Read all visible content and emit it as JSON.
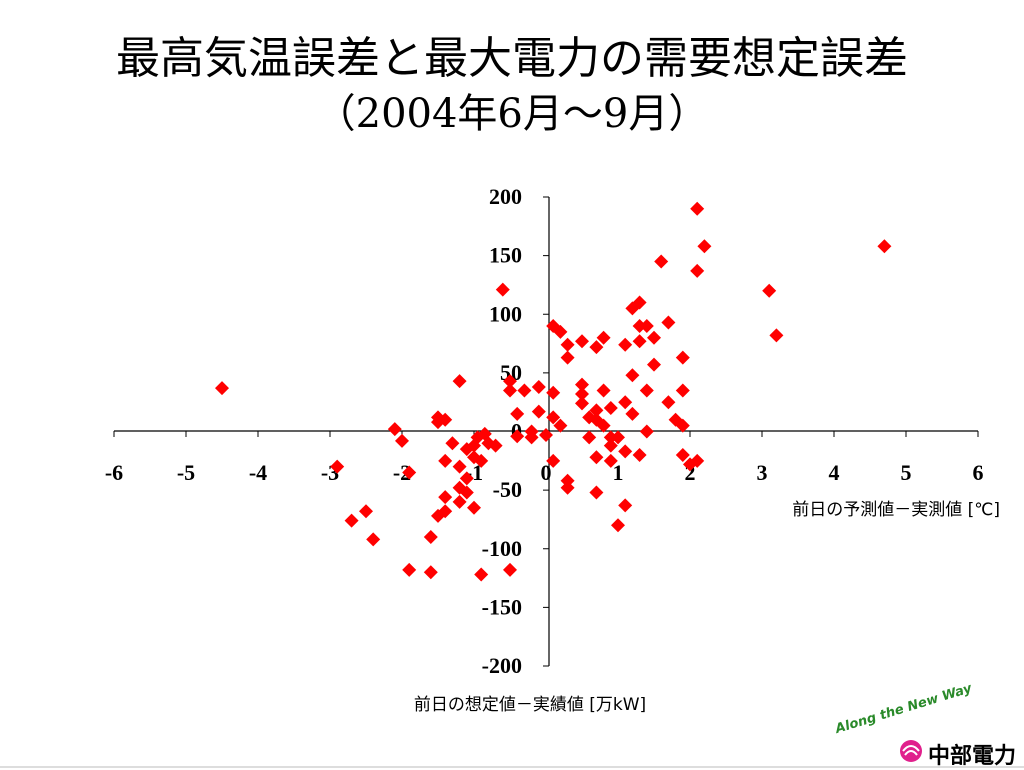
{
  "title": "最高気温誤差と最大電力の需要想定誤差",
  "subtitle": "（2004年6月～9月）",
  "branding": {
    "slogan": "Along the New Way",
    "company": "中部電力",
    "slogan_color": "#2a8a2a",
    "logo_color": "#e0208c"
  },
  "chart_data": {
    "type": "scatter",
    "title": "最高気温誤差と最大電力の需要想定誤差（2004年6月～9月）",
    "xlabel": "前日の予測値－実測値 [℃]",
    "ylabel": "前日の想定値－実績値 [万kW]",
    "xlim": [
      -6,
      6
    ],
    "ylim": [
      -200,
      200
    ],
    "xticks": [
      "-6",
      "-5",
      "-4",
      "-3",
      "-2",
      "-1",
      "0",
      "1",
      "2",
      "3",
      "4",
      "5",
      "6"
    ],
    "yticks": [
      "200",
      "150",
      "100",
      "50",
      "0",
      "-50",
      "-100",
      "-150",
      "-200"
    ],
    "marker": "diamond",
    "marker_color": "#ff0000",
    "points": [
      [
        -4.5,
        37
      ],
      [
        -2.9,
        -30
      ],
      [
        -2.7,
        -76
      ],
      [
        -2.5,
        -68
      ],
      [
        -2.4,
        -92
      ],
      [
        -2.1,
        2
      ],
      [
        -2.0,
        -8
      ],
      [
        -1.9,
        -35
      ],
      [
        -1.9,
        -118
      ],
      [
        -1.6,
        -90
      ],
      [
        -1.6,
        -120
      ],
      [
        -1.5,
        12
      ],
      [
        -1.5,
        8
      ],
      [
        -1.5,
        -72
      ],
      [
        -1.4,
        -25
      ],
      [
        -1.4,
        -56
      ],
      [
        -1.4,
        -68
      ],
      [
        -1.4,
        10
      ],
      [
        -1.3,
        -10
      ],
      [
        -1.2,
        43
      ],
      [
        -1.2,
        -30
      ],
      [
        -1.2,
        -48
      ],
      [
        -1.2,
        -60
      ],
      [
        -1.1,
        -15
      ],
      [
        -1.1,
        -40
      ],
      [
        -1.1,
        -52
      ],
      [
        -1.0,
        -12
      ],
      [
        -1.0,
        -22
      ],
      [
        -1.0,
        -65
      ],
      [
        -0.95,
        -5
      ],
      [
        -0.9,
        -25
      ],
      [
        -0.9,
        -122
      ],
      [
        -0.85,
        -2
      ],
      [
        -0.8,
        -10
      ],
      [
        -0.7,
        -12
      ],
      [
        -0.6,
        121
      ],
      [
        -0.5,
        43
      ],
      [
        -0.5,
        35
      ],
      [
        -0.5,
        -118
      ],
      [
        -0.4,
        -4
      ],
      [
        -0.4,
        15
      ],
      [
        -0.3,
        35
      ],
      [
        -0.2,
        -5
      ],
      [
        -0.2,
        0
      ],
      [
        -0.1,
        38
      ],
      [
        -0.1,
        17
      ],
      [
        0.0,
        -3
      ],
      [
        0.1,
        90
      ],
      [
        0.1,
        33
      ],
      [
        0.1,
        12
      ],
      [
        0.1,
        -25
      ],
      [
        0.2,
        85
      ],
      [
        0.2,
        5
      ],
      [
        0.3,
        74
      ],
      [
        0.3,
        63
      ],
      [
        0.3,
        -42
      ],
      [
        0.3,
        -48
      ],
      [
        0.5,
        77
      ],
      [
        0.5,
        40
      ],
      [
        0.5,
        32
      ],
      [
        0.5,
        24
      ],
      [
        0.6,
        12
      ],
      [
        0.6,
        -5
      ],
      [
        0.7,
        72
      ],
      [
        0.7,
        18
      ],
      [
        0.7,
        10
      ],
      [
        0.7,
        -22
      ],
      [
        0.7,
        -52
      ],
      [
        0.8,
        80
      ],
      [
        0.8,
        35
      ],
      [
        0.8,
        5
      ],
      [
        0.9,
        20
      ],
      [
        0.9,
        -5
      ],
      [
        0.9,
        -12
      ],
      [
        0.9,
        -25
      ],
      [
        1.0,
        -5
      ],
      [
        1.0,
        -80
      ],
      [
        1.1,
        74
      ],
      [
        1.1,
        25
      ],
      [
        1.1,
        -17
      ],
      [
        1.1,
        -63
      ],
      [
        1.2,
        105
      ],
      [
        1.2,
        48
      ],
      [
        1.2,
        15
      ],
      [
        1.3,
        110
      ],
      [
        1.3,
        90
      ],
      [
        1.3,
        77
      ],
      [
        1.3,
        -20
      ],
      [
        1.4,
        90
      ],
      [
        1.4,
        35
      ],
      [
        1.4,
        0
      ],
      [
        1.5,
        80
      ],
      [
        1.5,
        57
      ],
      [
        1.6,
        145
      ],
      [
        1.7,
        93
      ],
      [
        1.7,
        25
      ],
      [
        1.8,
        10
      ],
      [
        1.9,
        63
      ],
      [
        1.9,
        35
      ],
      [
        1.9,
        5
      ],
      [
        1.9,
        -20
      ],
      [
        2.0,
        -28
      ],
      [
        2.1,
        190
      ],
      [
        2.1,
        137
      ],
      [
        2.1,
        -25
      ],
      [
        2.2,
        158
      ],
      [
        3.1,
        120
      ],
      [
        3.2,
        82
      ],
      [
        4.7,
        158
      ]
    ]
  }
}
